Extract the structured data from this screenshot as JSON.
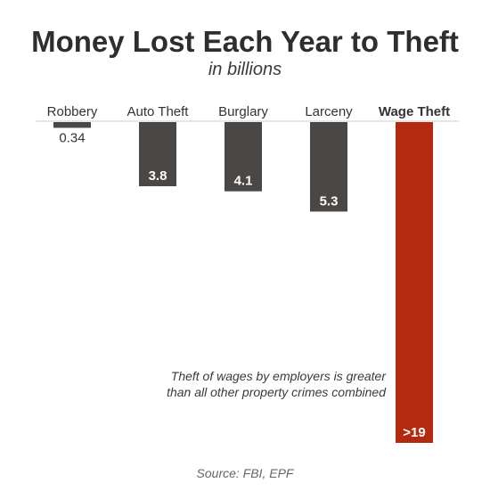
{
  "chart_data": {
    "type": "bar",
    "title": "Money Lost Each Year to Theft",
    "subtitle": "in billions",
    "categories": [
      "Robbery",
      "Auto Theft",
      "Burglary",
      "Larceny",
      "Wage Theft"
    ],
    "values": [
      0.34,
      3.8,
      4.1,
      5.3,
      19
    ],
    "value_labels": [
      "0.34",
      "3.8",
      "4.1",
      "5.3",
      ">19"
    ],
    "orientation": "vertical-downward",
    "ylim": [
      0,
      19
    ],
    "grid": false,
    "legend": "none",
    "highlight_category": "Wage Theft",
    "annotation": [
      "Theft of wages by employers is greater",
      "than all other property crimes combined"
    ],
    "source": "Source: FBI, EPF"
  },
  "colors": {
    "bar": "#4a4745",
    "highlight": "#b32a10",
    "baseline": "#cfcfcf"
  }
}
